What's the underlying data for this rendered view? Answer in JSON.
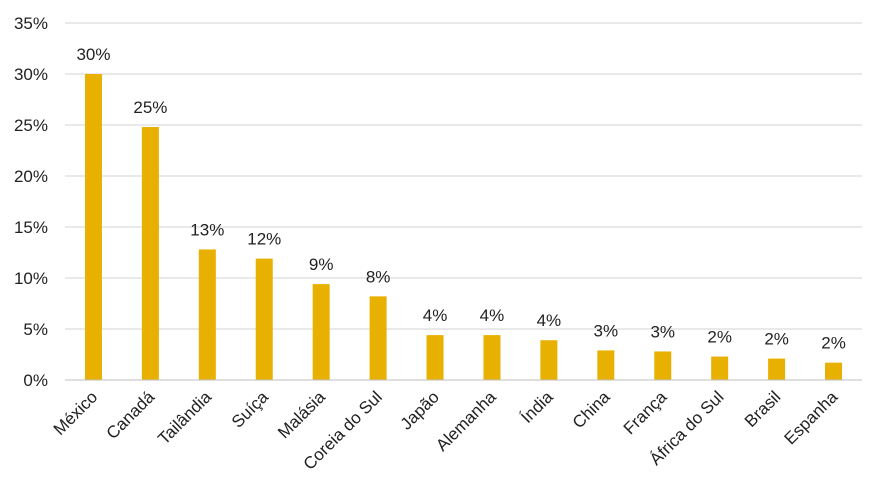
{
  "chart_data": {
    "type": "bar",
    "categories": [
      "México",
      "Canadá",
      "Tailândia",
      "Suíça",
      "Malásia",
      "Coreia do Sul",
      "Japão",
      "Alemanha",
      "Índia",
      "China",
      "França",
      "África do Sul",
      "Brasil",
      "Espanha"
    ],
    "series": [
      {
        "values": [
          30,
          24.8,
          12.8,
          11.9,
          9.4,
          8.2,
          4.4,
          4.4,
          3.9,
          2.9,
          2.8,
          2.3,
          2.1,
          1.7
        ],
        "labels": [
          "30%",
          "25%",
          "13%",
          "12%",
          "9%",
          "8%",
          "4%",
          "4%",
          "4%",
          "3%",
          "3%",
          "2%",
          "2%",
          "2%"
        ],
        "color": "#E8B000"
      }
    ],
    "ylim": [
      0,
      35
    ],
    "yticks": [
      "0%",
      "5%",
      "10%",
      "15%",
      "20%",
      "25%",
      "30%",
      "35%"
    ],
    "grid": true,
    "legend": "none"
  }
}
